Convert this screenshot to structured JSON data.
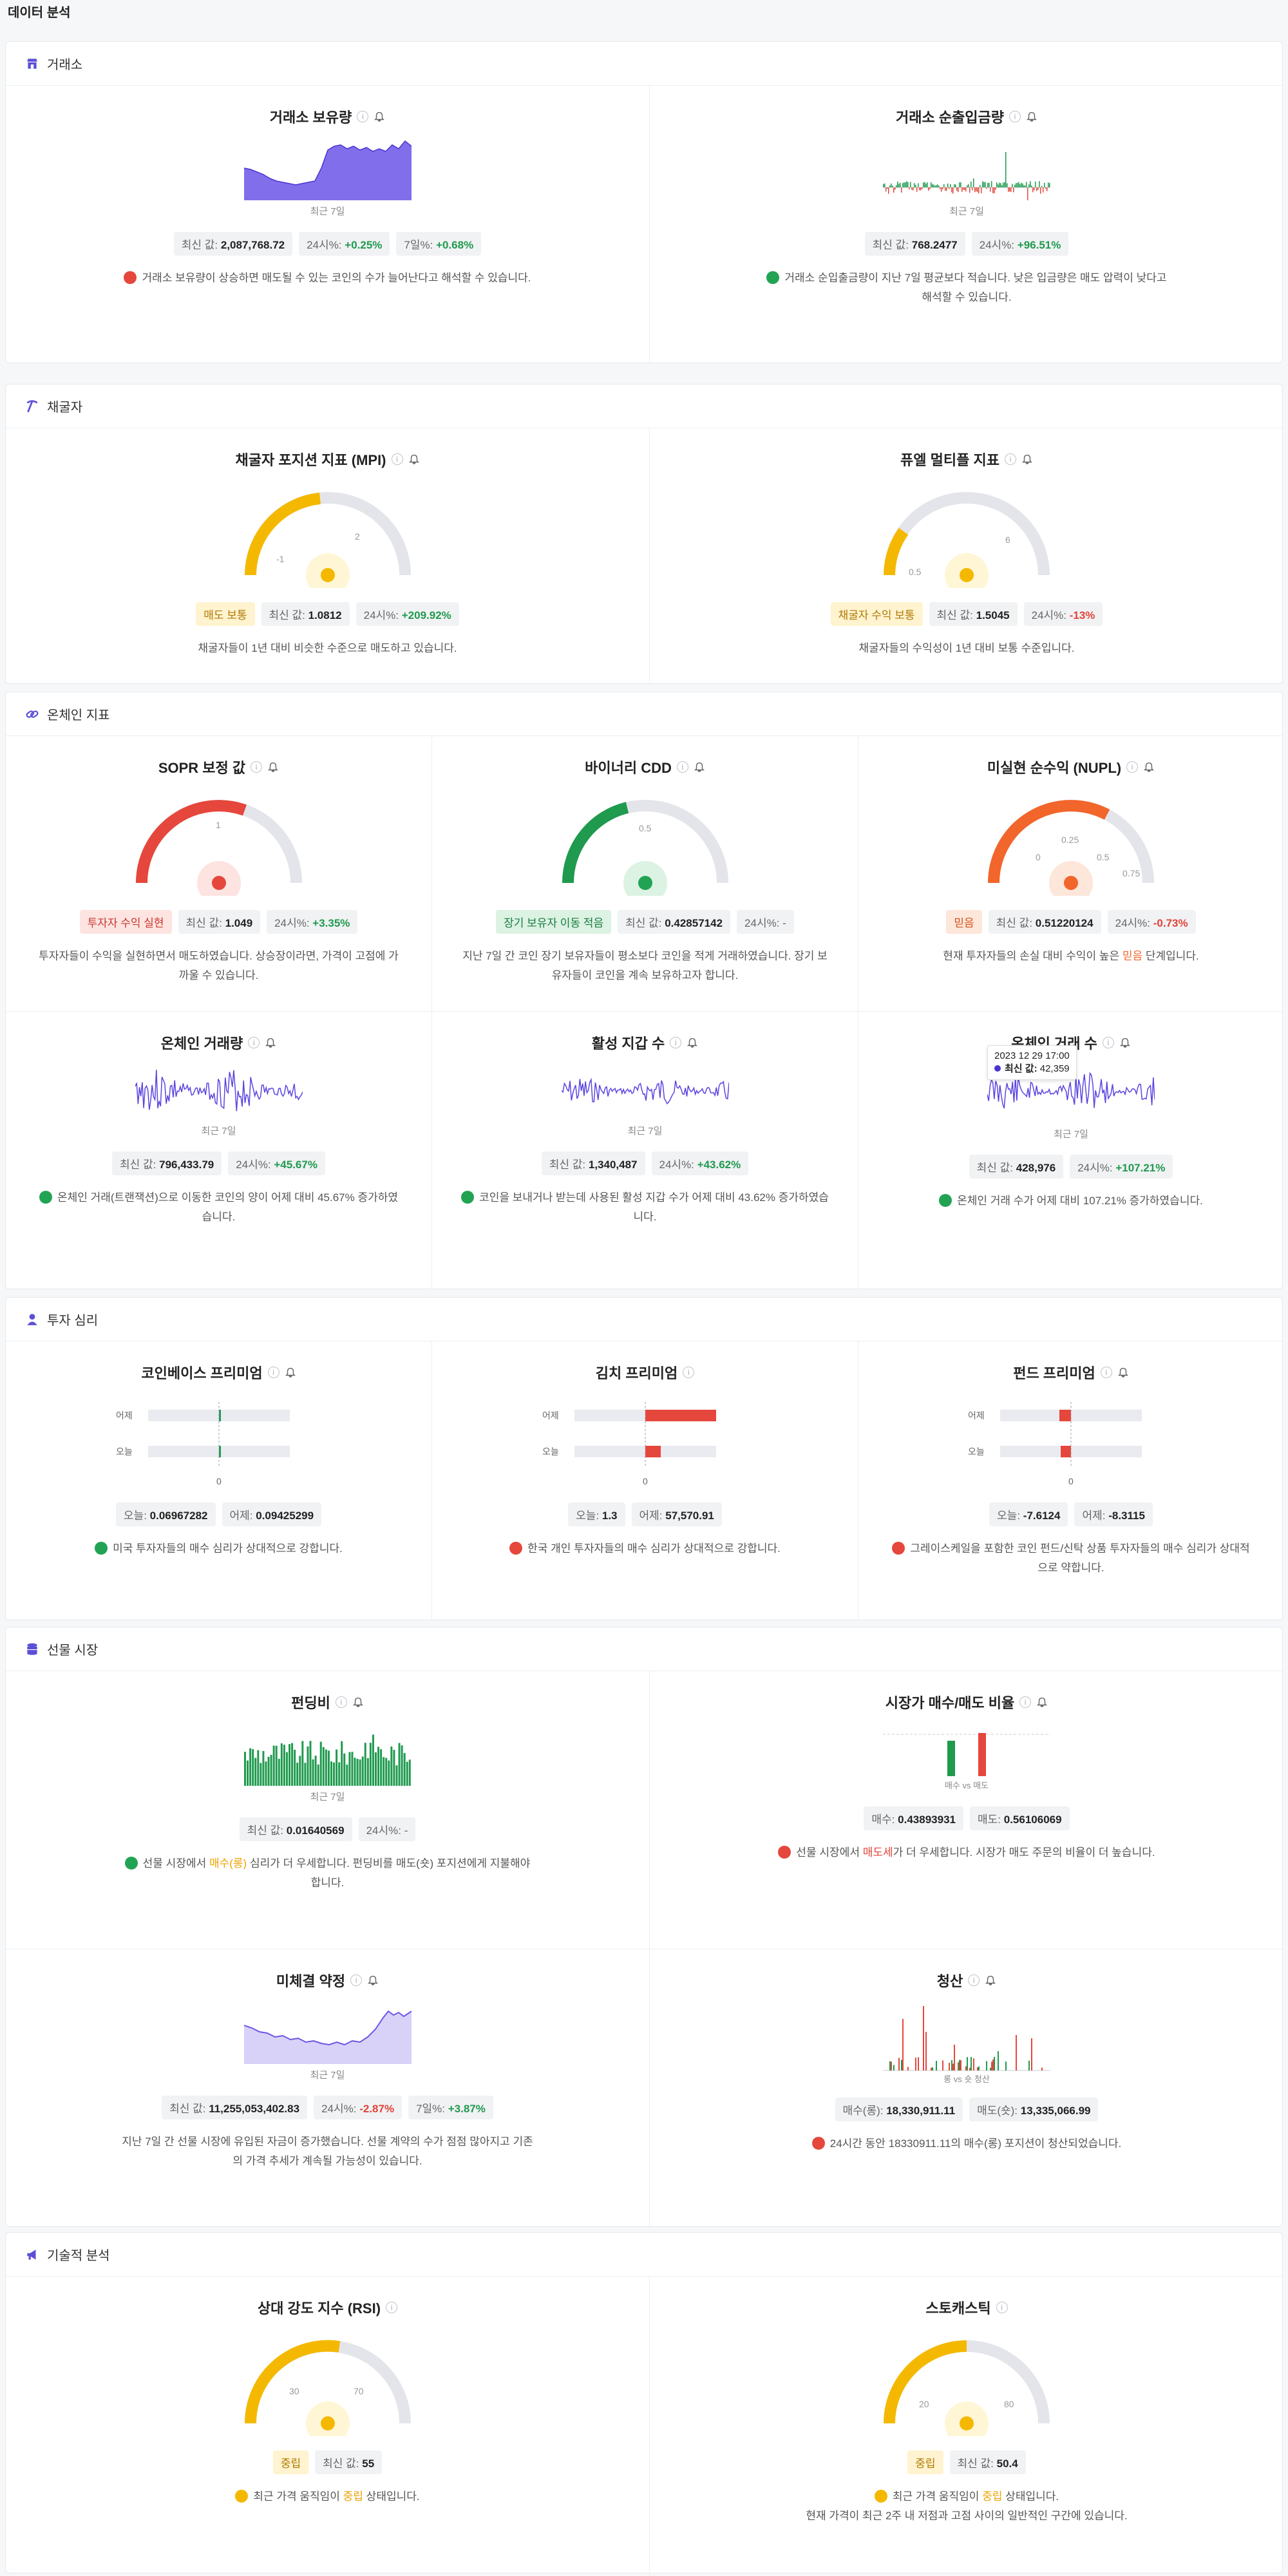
{
  "header": {
    "title": "데이터 분석"
  },
  "sections": {
    "exchange": {
      "title": "거래소",
      "c1": {
        "title": "거래소 보유량",
        "period": "최근 7일",
        "latest_label": "최신 값:",
        "latest": "2,087,768.72",
        "d24_label": "24시%:",
        "d24": "+0.25%",
        "d7_label": "7일%:",
        "d7": "+0.68%",
        "desc": "거래소 보유량이 상승하면 매도될 수 있는 코인의 수가 늘어난다고 해석할 수 있습니다."
      },
      "c2": {
        "title": "거래소 순출입금량",
        "period": "최근 7일",
        "latest_label": "최신 값:",
        "latest": "768.2477",
        "d24_label": "24시%:",
        "d24": "+96.51%",
        "desc": "거래소 순입출금량이 지난 7일 평균보다 적습니다. 낮은 입금량은 매도 압력이 낮다고 해석할 수 있습니다."
      }
    },
    "miner": {
      "title": "채굴자",
      "c1": {
        "title": "채굴자 포지션 지표 (MPI)",
        "tick1": "-1",
        "tick2": "2",
        "tag": "매도 보통",
        "latest_label": "최신 값:",
        "latest": "1.0812",
        "d24_label": "24시%:",
        "d24": "+209.92%",
        "desc": "채굴자들이 1년 대비 비슷한 수준으로 매도하고 있습니다."
      },
      "c2": {
        "title": "퓨엘 멀티플 지표",
        "tick1": "0.5",
        "tick2": "6",
        "tag": "채굴자 수익 보통",
        "latest_label": "최신 값:",
        "latest": "1.5045",
        "d24_label": "24시%:",
        "d24": "-13%",
        "desc": "채굴자들의 수익성이 1년 대비 보통 수준입니다."
      }
    },
    "onchain": {
      "title": "온체인 지표",
      "c1": {
        "title": "SOPR 보정 값",
        "tick1": "1",
        "tag": "투자자 수익 실현",
        "latest_label": "최신 값:",
        "latest": "1.049",
        "d24_label": "24시%:",
        "d24": "+3.35%",
        "desc": "투자자들이 수익을 실현하면서 매도하였습니다. 상승장이라면, 가격이 고점에 가까울 수 있습니다."
      },
      "c2": {
        "title": "바이너리 CDD",
        "tick1": "0.5",
        "tag": "장기 보유자 이동 적음",
        "latest_label": "최신 값:",
        "latest": "0.42857142",
        "d24_label": "24시%:",
        "d24": "-",
        "desc": "지난 7일 간 코인 장기 보유자들이 평소보다 코인을 적게 거래하였습니다. 장기 보유자들이 코인을 계속 보유하고자 합니다."
      },
      "c3": {
        "title": "미실현 순수익 (NUPL)",
        "tick0": "0",
        "tick1": "0.25",
        "tick2": "0.5",
        "tick3": "0.75",
        "tag": "믿음",
        "latest_label": "최신 값:",
        "latest": "0.51220124",
        "d24_label": "24시%:",
        "d24": "-0.73%",
        "desc_a": "현재 투자자들의 손실 대비 수익이 높은 ",
        "desc_hl": "믿음",
        "desc_b": " 단계입니다."
      },
      "c4": {
        "title": "온체인 거래량",
        "period": "최근 7일",
        "latest_label": "최신 값:",
        "latest": "796,433.79",
        "d24_label": "24시%:",
        "d24": "+45.67%",
        "desc": "온체인 거래(트랜잭션)으로 이동한 코인의 양이 어제 대비 45.67% 증가하였습니다."
      },
      "c5": {
        "title": "활성 지갑 수",
        "period": "최근 7일",
        "latest_label": "최신 값:",
        "latest": "1,340,487",
        "d24_label": "24시%:",
        "d24": "+43.62%",
        "desc": "코인을 보내거나 받는데 사용된 활성 지갑 수가 어제 대비 43.62% 증가하였습니다."
      },
      "c6": {
        "title": "온체인 거래 수",
        "period": "최근 7일",
        "tooltip_date": "2023 12 29 17:00",
        "tooltip_label": "최신 값:",
        "tooltip_value": "42,359",
        "latest_label": "최신 값:",
        "latest": "428,976",
        "d24_label": "24시%:",
        "d24": "+107.21%",
        "desc": "온체인 거래 수가 어제 대비 107.21% 증가하였습니다."
      }
    },
    "sentiment": {
      "title": "투자 심리",
      "yesterday": "어제",
      "today": "오늘",
      "zero": "0",
      "c1": {
        "title": "코인베이스 프리미엄",
        "today_label": "오늘:",
        "today_val": "0.06967282",
        "yday_label": "어제:",
        "yday_val": "0.09425299",
        "desc": "미국 투자자들의 매수 심리가 상대적으로 강합니다."
      },
      "c2": {
        "title": "김치 프리미엄",
        "today_label": "오늘:",
        "today_val": "1.3",
        "yday_label": "어제:",
        "yday_val": "57,570.91",
        "desc": "한국 개인 투자자들의 매수 심리가 상대적으로 강합니다."
      },
      "c3": {
        "title": "펀드 프리미엄",
        "today_label": "오늘:",
        "today_val": "-7.6124",
        "yday_label": "어제:",
        "yday_val": "-8.3115",
        "desc": "그레이스케일을 포함한 코인 펀드/신탁 상품 투자자들의 매수 심리가 상대적으로 약합니다."
      }
    },
    "futures": {
      "title": "선물 시장",
      "c1": {
        "title": "펀딩비",
        "period": "최근 7일",
        "latest_label": "최신 값:",
        "latest": "0.01640569",
        "d24_label": "24시%:",
        "d24": "-",
        "desc_a": "선물 시장에서 ",
        "desc_hl": "매수(롱)",
        "desc_b": " 심리가 더 우세합니다. 펀딩비를 매도(숏) 포지션에게 지불해야 합니다."
      },
      "c2": {
        "title": "시장가 매수/매도 비율",
        "legend": "매수 vs 매도",
        "buy_label": "매수:",
        "buy": "0.43893931",
        "sell_label": "매도:",
        "sell": "0.56106069",
        "desc_a": "선물 시장에서 ",
        "desc_hl": "매도세",
        "desc_b": "가 더 우세합니다. 시장가 매도 주문의 비율이 더 높습니다."
      },
      "c3": {
        "title": "미체결 약정",
        "period": "최근 7일",
        "latest_label": "최신 값:",
        "latest": "11,255,053,402.83",
        "d24_label": "24시%:",
        "d24": "-2.87%",
        "d7_label": "7일%:",
        "d7": "+3.87%",
        "desc": "지난 7일 간 선물 시장에 유입된 자금이 증가했습니다. 선물 계약의 수가 점점 많아지고 기존의 가격 추세가 계속될 가능성이 있습니다."
      },
      "c4": {
        "title": "청산",
        "legend": "롱 vs 숏 청산",
        "long_label": "매수(롱):",
        "long": "18,330,911.11",
        "short_label": "매도(숏):",
        "short": "13,335,066.99",
        "desc": "24시간 동안 18330911.11의 매수(롱) 포지션이 청산되었습니다."
      }
    },
    "technical": {
      "title": "기술적 분석",
      "c1": {
        "title": "상대 강도 지수 (RSI)",
        "tick1": "30",
        "tick2": "70",
        "tag": "중립",
        "latest_label": "최신 값:",
        "latest": "55",
        "desc_a": "최근 가격 움직임이 ",
        "desc_hl": "중립",
        "desc_b": " 상태입니다."
      },
      "c2": {
        "title": "스토캐스틱",
        "tick1": "20",
        "tick2": "80",
        "tag": "중립",
        "latest_label": "최신 값:",
        "latest": "50.4",
        "desc_a": "최근 가격 움직임이 ",
        "desc_hl": "중립",
        "desc_b": " 상태입니다.",
        "desc2": "현재 가격이 최근 2주 내 저점과 고점 사이의 일반적인 구간에 있습니다."
      }
    }
  },
  "colors": {
    "purple": "#6b55e8",
    "green": "#1f9a4e",
    "red": "#e5473c",
    "orange": "#f2652b",
    "yellow": "#f5b800",
    "grey": "#e4e5ea"
  },
  "icons": [
    "store-icon",
    "pickaxe-icon",
    "chain-link-icon",
    "user-icon",
    "database-icon",
    "megaphone-icon",
    "info-icon",
    "bell-icon",
    "face-icon"
  ]
}
